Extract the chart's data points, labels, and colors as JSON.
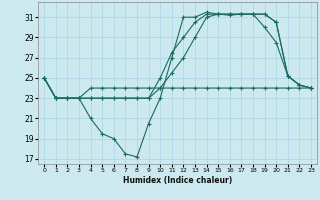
{
  "xlabel": "Humidex (Indice chaleur)",
  "bg_color": "#cce9f0",
  "grid_color": "#b0d8e8",
  "line_color": "#1a6b5a",
  "series": [
    [
      25,
      23,
      23,
      23,
      21,
      19.5,
      19,
      17.5,
      17.2,
      20.5,
      23,
      27,
      31,
      31,
      31.5,
      31.3,
      31.2,
      31.3,
      31.3,
      30,
      28.5,
      25.2,
      24.3,
      24.0
    ],
    [
      25,
      23,
      23,
      23,
      24,
      24,
      24,
      24,
      24,
      24,
      24,
      24,
      24,
      24,
      24,
      24,
      24,
      24,
      24,
      24,
      24,
      24,
      24,
      24
    ],
    [
      25,
      23,
      23,
      23,
      23,
      23,
      23,
      23,
      23,
      23,
      25,
      27.5,
      29,
      30.5,
      31.3,
      31.3,
      31.3,
      31.3,
      31.3,
      31.3,
      30.5,
      25.2,
      24.3,
      24.0
    ],
    [
      25,
      23,
      23,
      23,
      23,
      23,
      23,
      23,
      23,
      23,
      24,
      25.5,
      27,
      29,
      31,
      31.3,
      31.3,
      31.3,
      31.3,
      31.3,
      30.5,
      25.2,
      24.3,
      24.0
    ]
  ],
  "xlim": [
    -0.5,
    23.5
  ],
  "ylim": [
    16.5,
    32.5
  ],
  "xticks": [
    0,
    1,
    2,
    3,
    4,
    5,
    6,
    7,
    8,
    9,
    10,
    11,
    12,
    13,
    14,
    15,
    16,
    17,
    18,
    19,
    20,
    21,
    22,
    23
  ],
  "yticks": [
    17,
    19,
    21,
    23,
    25,
    27,
    29,
    31
  ]
}
